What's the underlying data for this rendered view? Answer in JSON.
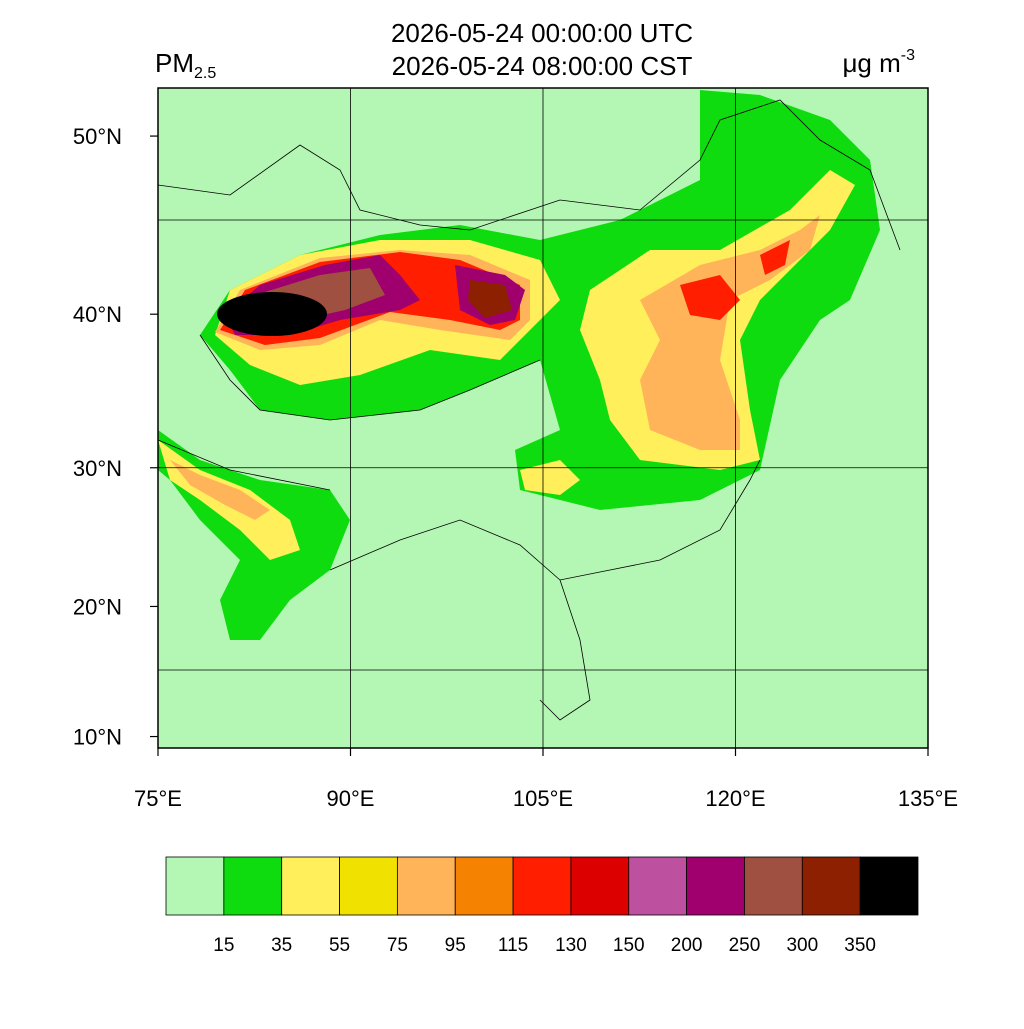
{
  "title": [
    "2026-05-24 00:00:00 UTC",
    "2026-05-24 08:00:00 CST"
  ],
  "left_label": {
    "text": "PM",
    "subscript": "2.5"
  },
  "right_label": {
    "text": "μg m",
    "superscript": "-3"
  },
  "map": {
    "xlim": [
      75,
      135
    ],
    "ylim": [
      9.1,
      52.4
    ],
    "projection": "mercator",
    "lat_ticks": [
      {
        "value": 50,
        "label": "50°N"
      },
      {
        "value": 40,
        "label": "40°N"
      },
      {
        "value": 30,
        "label": "30°N"
      },
      {
        "value": 20,
        "label": "20°N"
      },
      {
        "value": 10,
        "label": "10°N"
      }
    ],
    "lon_ticks": [
      {
        "value": 75,
        "label": "75°E"
      },
      {
        "value": 90,
        "label": "90°E"
      },
      {
        "value": 105,
        "label": "105°E"
      },
      {
        "value": 120,
        "label": "120°E"
      },
      {
        "value": 135,
        "label": "135°E"
      }
    ]
  },
  "colorbar": {
    "colors": [
      "#b4f7b4",
      "#0fdc0f",
      "#ffef5a",
      "#f0e100",
      "#ffb45a",
      "#f58200",
      "#ff1e00",
      "#dc0000",
      "#be50a0",
      "#a0006e",
      "#a05040",
      "#8c2000",
      "#000000"
    ],
    "levels": [
      15,
      35,
      55,
      75,
      95,
      115,
      130,
      150,
      200,
      250,
      300,
      350
    ]
  }
}
